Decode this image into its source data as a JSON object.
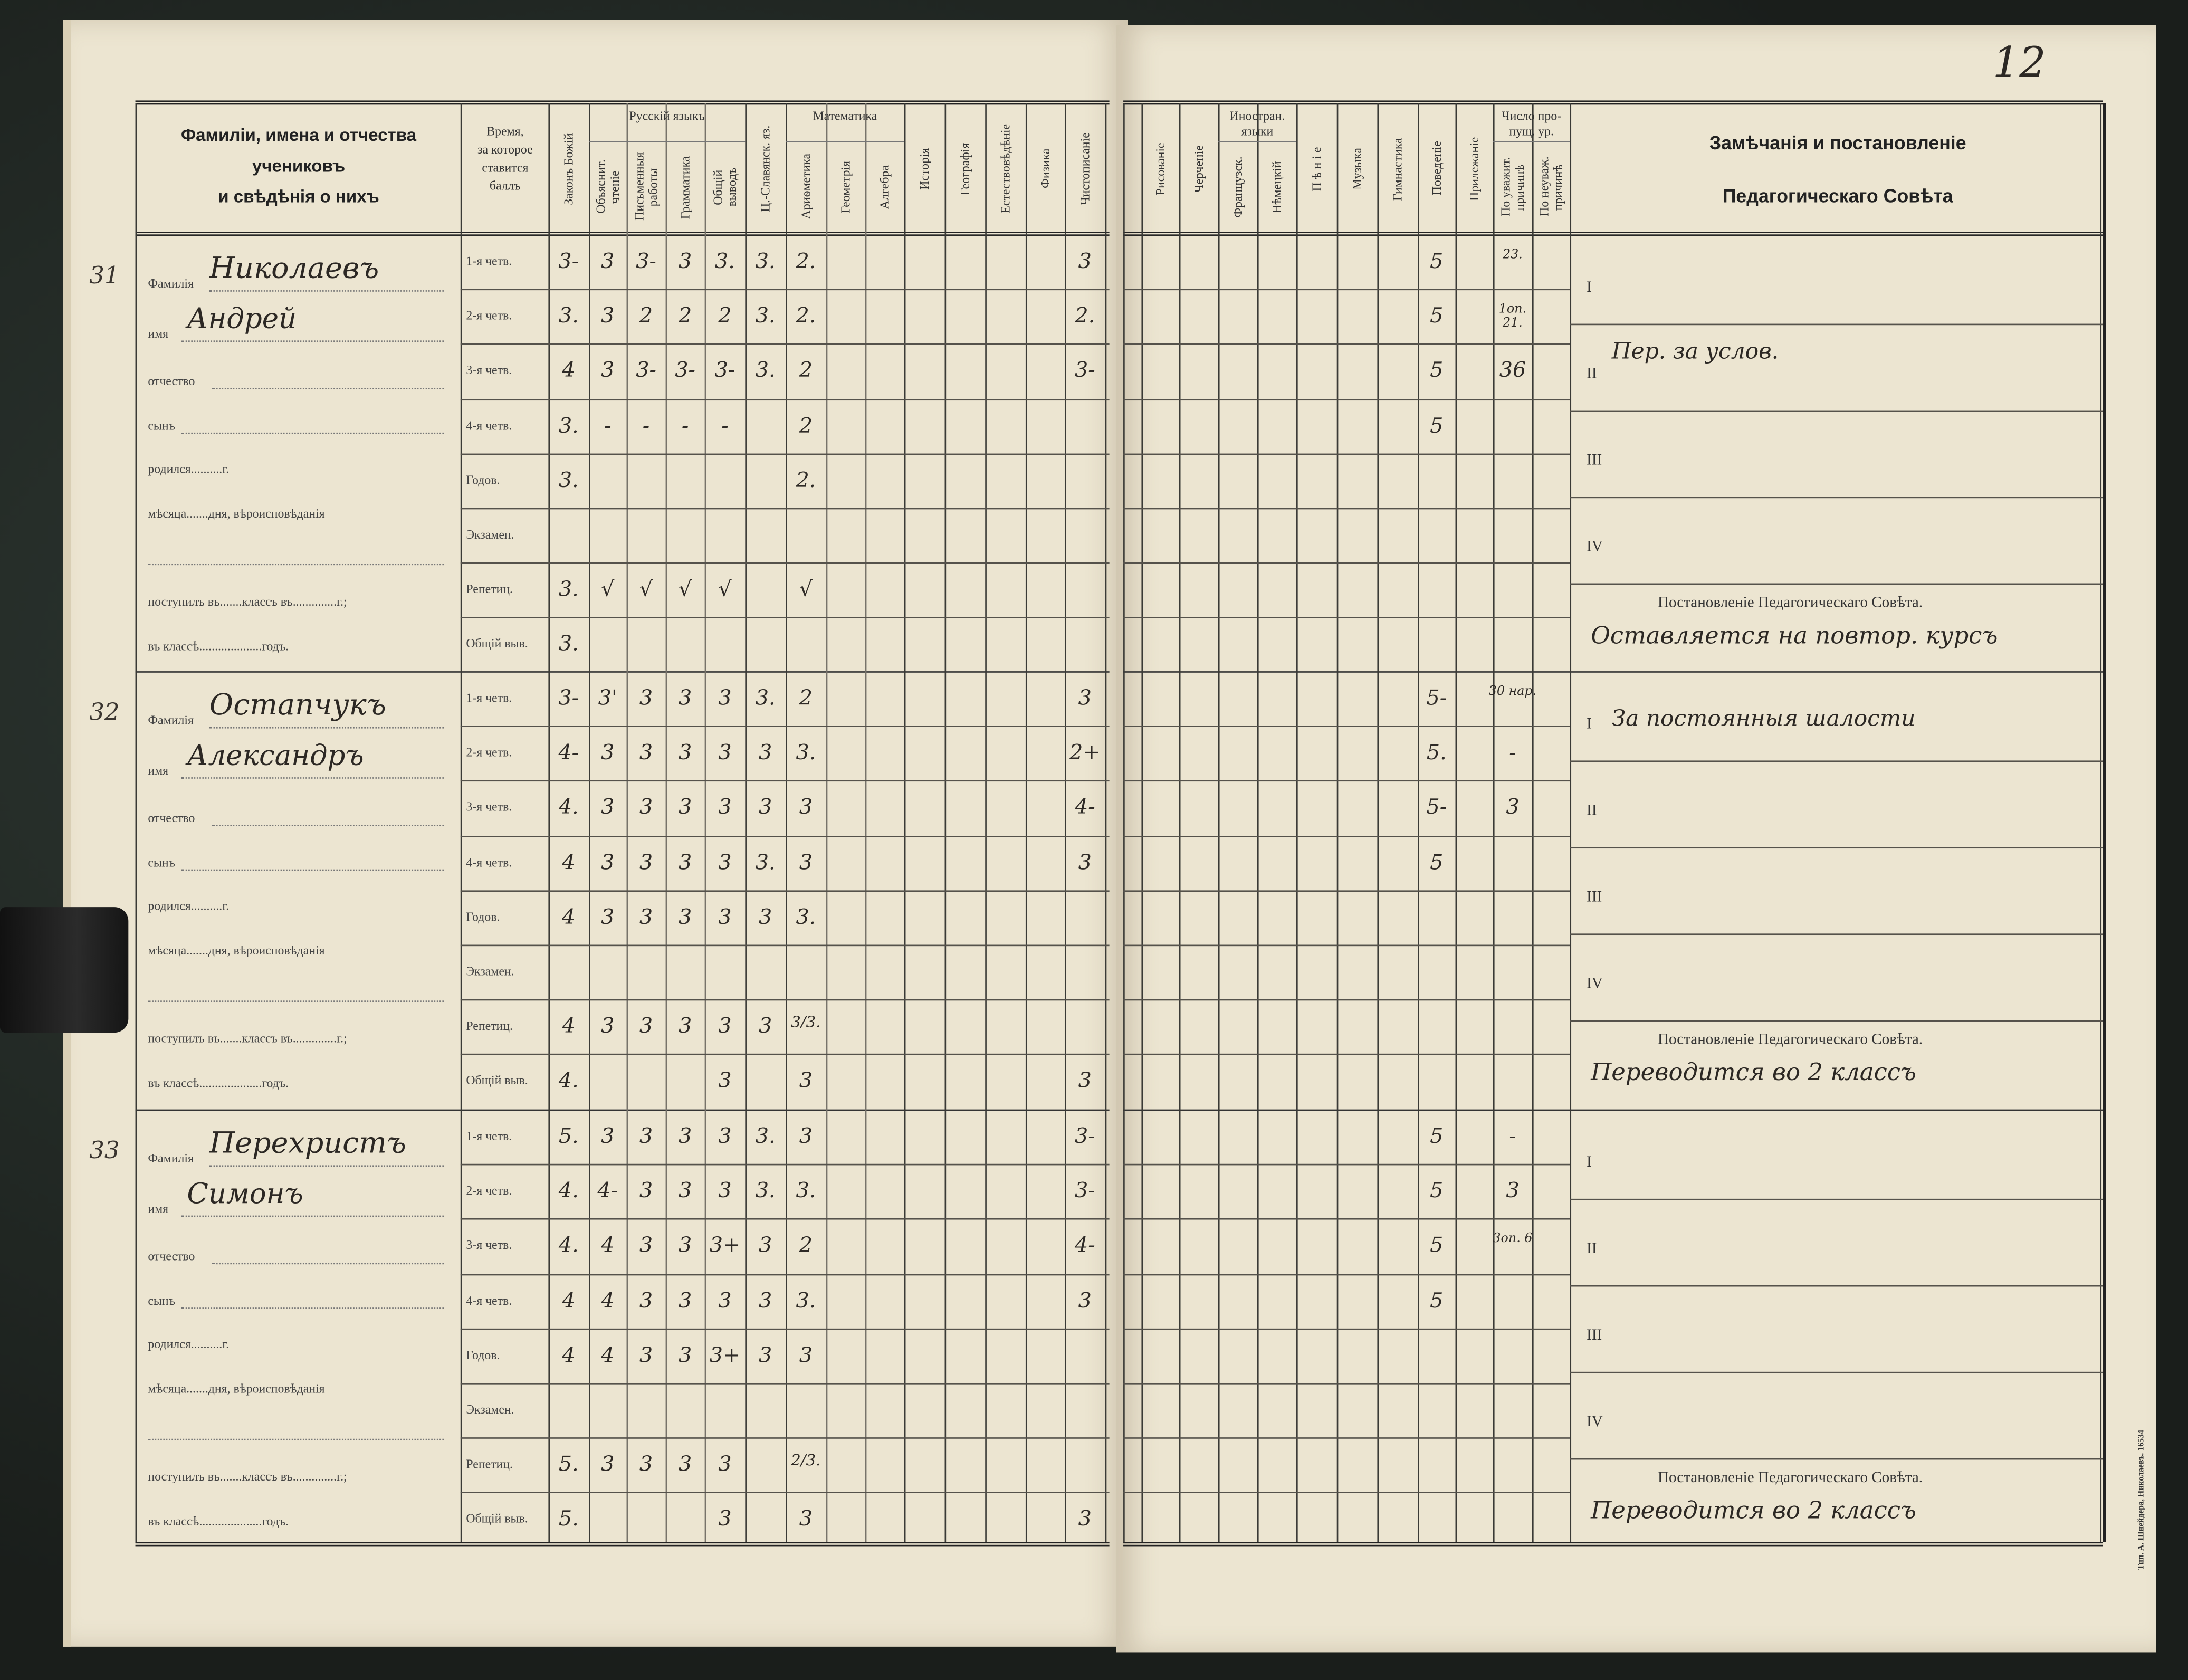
{
  "page_number": "12",
  "header": {
    "names_col": [
      "Фамиліи, имена и отчества",
      "учениковъ",
      "и свѣдѣнія о нихъ"
    ],
    "time_col": "Время,\nза которое\nставится\nбаллъ",
    "groups": {
      "russian": "Русскій языкъ",
      "math": "Математика",
      "foreign": "Иностран. языки",
      "absences": "Число про-\nпущ. ур."
    },
    "left_subjects": [
      "Законъ Божій",
      "Объяснит.\nчтеніе",
      "Письменныя\nработы",
      "Грамматика",
      "Общій\nвыводъ",
      "Ц.-Славянск. яз.",
      "Ариѳметика",
      "Геометрія",
      "Алгебра",
      "Исторія",
      "Географія",
      "Естествовѣдѣніе",
      "Физика",
      "Чистописаніе"
    ],
    "right_subjects": [
      "Рисованіе",
      "Черченіе",
      "Французск.",
      "Нѣмецкій",
      "П ѣ н і е",
      "Музыка",
      "Гимнастика",
      "Поведеніе",
      "Прилежаніе",
      "По уважит.\nпричинѣ",
      "По неуваж.\nпричинѣ"
    ],
    "remarks_title": [
      "Замѣчанія и постановленіе",
      "Педагогическаго Совѣта"
    ]
  },
  "form_labels": {
    "surname": "Фамилія",
    "name": "имя",
    "patronymic": "отчество",
    "son": "сынъ",
    "born": "родился..........г.",
    "month": "мѣсяца.......дня, вѣроисповѣданія",
    "entered": "поступилъ въ.......классъ въ..............г.;",
    "in_class": "въ классѣ....................годъ."
  },
  "period_labels": [
    "1-я четв.",
    "2-я четв.",
    "3-я четв.",
    "4-я четв.",
    "Годов.",
    "Экзамен.",
    "Репетиц.",
    "Общій выв."
  ],
  "quarter_numerals": [
    "I",
    "II",
    "III",
    "IV"
  ],
  "resolution_label": "Постановленіе Педагогическаго Совѣта.",
  "printer_imprint": "Тип. А. Шнейдера, Николаевъ. 16534",
  "students": [
    {
      "number": "31",
      "surname": "Николаевъ",
      "name": "Андрей",
      "left_grades": [
        [
          "3-",
          "3",
          "3-",
          "3",
          "3.",
          "3.",
          "2.",
          "",
          "",
          "",
          "",
          "",
          "",
          "3"
        ],
        [
          "3.",
          "3",
          "2",
          "2",
          "2",
          "3.",
          "2.",
          "",
          "",
          "",
          "",
          "",
          "",
          "2."
        ],
        [
          "4",
          "3",
          "3-",
          "3-",
          "3-",
          "3.",
          "2",
          "",
          "",
          "",
          "",
          "",
          "",
          "3-"
        ],
        [
          "3.",
          "-",
          "-",
          "-",
          "-",
          "",
          "2",
          "",
          "",
          "",
          "",
          "",
          "",
          ""
        ],
        [
          "3.",
          "",
          "",
          "",
          "",
          "",
          "2.",
          "",
          "",
          "",
          "",
          "",
          "",
          ""
        ],
        [
          "",
          "",
          "",
          "",
          "",
          "",
          "",
          "",
          "",
          "",
          "",
          "",
          "",
          ""
        ],
        [
          "3.",
          "√",
          "√",
          "√",
          "√",
          "",
          "√",
          "",
          "",
          "",
          "",
          "",
          "",
          ""
        ],
        [
          "3.",
          "",
          "",
          "",
          "",
          "",
          "",
          "",
          "",
          "",
          "",
          "",
          "",
          ""
        ]
      ],
      "right_grades": [
        [
          "",
          "",
          "",
          "",
          "",
          "",
          "",
          "5",
          "",
          "23.",
          ""
        ],
        [
          "",
          "",
          "",
          "",
          "",
          "",
          "",
          "5",
          "",
          "1оп. 21.",
          ""
        ],
        [
          "",
          "",
          "",
          "",
          "",
          "",
          "",
          "5",
          "",
          "36",
          ""
        ],
        [
          "",
          "",
          "",
          "",
          "",
          "",
          "",
          "5",
          "",
          "",
          ""
        ],
        [
          "",
          "",
          "",
          "",
          "",
          "",
          "",
          "",
          "",
          "",
          ""
        ],
        [
          "",
          "",
          "",
          "",
          "",
          "",
          "",
          "",
          "",
          "",
          ""
        ],
        [
          "",
          "",
          "",
          "",
          "",
          "",
          "",
          "",
          "",
          "",
          ""
        ],
        [
          "",
          "",
          "",
          "",
          "",
          "",
          "",
          "",
          "",
          "",
          ""
        ]
      ],
      "remarks": [
        "",
        "Пер. за услов.",
        "",
        ""
      ],
      "resolution": "Оставляется на повтор. курсъ"
    },
    {
      "number": "32",
      "surname": "Остапчукъ",
      "name": "Александръ",
      "left_grades": [
        [
          "3-",
          "3'",
          "3",
          "3",
          "3",
          "3.",
          "2",
          "",
          "",
          "",
          "",
          "",
          "",
          "3"
        ],
        [
          "4-",
          "3",
          "3",
          "3",
          "3",
          "3",
          "3.",
          "",
          "",
          "",
          "",
          "",
          "",
          "2+"
        ],
        [
          "4.",
          "3",
          "3",
          "3",
          "3",
          "3",
          "3",
          "",
          "",
          "",
          "",
          "",
          "",
          "4-"
        ],
        [
          "4",
          "3",
          "3",
          "3",
          "3",
          "3.",
          "3",
          "",
          "",
          "",
          "",
          "",
          "",
          "3"
        ],
        [
          "4",
          "3",
          "3",
          "3",
          "3",
          "3",
          "3.",
          "",
          "",
          "",
          "",
          "",
          "",
          ""
        ],
        [
          "",
          "",
          "",
          "",
          "",
          "",
          "",
          "",
          "",
          "",
          "",
          "",
          "",
          ""
        ],
        [
          "4",
          "3",
          "3",
          "3",
          "3",
          "3",
          "3/3.",
          "",
          "",
          "",
          "",
          "",
          "",
          ""
        ],
        [
          "4.",
          "",
          "",
          "",
          "3",
          "",
          "3",
          "",
          "",
          "",
          "",
          "",
          "",
          "3"
        ]
      ],
      "right_grades": [
        [
          "",
          "",
          "",
          "",
          "",
          "",
          "",
          "5-",
          "",
          "30 нар.",
          ""
        ],
        [
          "",
          "",
          "",
          "",
          "",
          "",
          "",
          "5.",
          "",
          "-",
          ""
        ],
        [
          "",
          "",
          "",
          "",
          "",
          "",
          "",
          "5-",
          "",
          "3",
          ""
        ],
        [
          "",
          "",
          "",
          "",
          "",
          "",
          "",
          "5",
          "",
          "",
          ""
        ],
        [
          "",
          "",
          "",
          "",
          "",
          "",
          "",
          "",
          "",
          "",
          ""
        ],
        [
          "",
          "",
          "",
          "",
          "",
          "",
          "",
          "",
          "",
          "",
          ""
        ],
        [
          "",
          "",
          "",
          "",
          "",
          "",
          "",
          "",
          "",
          "",
          ""
        ],
        [
          "",
          "",
          "",
          "",
          "",
          "",
          "",
          "",
          "",
          "",
          ""
        ]
      ],
      "remarks": [
        "За постоянныя шалости",
        "",
        "",
        ""
      ],
      "resolution": "Переводится во 2 классъ"
    },
    {
      "number": "33",
      "surname": "Перехристъ",
      "name": "Симонъ",
      "left_grades": [
        [
          "5.",
          "3",
          "3",
          "3",
          "3",
          "3.",
          "3",
          "",
          "",
          "",
          "",
          "",
          "",
          "3-"
        ],
        [
          "4.",
          "4-",
          "3",
          "3",
          "3",
          "3.",
          "3.",
          "",
          "",
          "",
          "",
          "",
          "",
          "3-"
        ],
        [
          "4.",
          "4",
          "3",
          "3",
          "3+",
          "3",
          "2",
          "",
          "",
          "",
          "",
          "",
          "",
          "4-"
        ],
        [
          "4",
          "4",
          "3",
          "3",
          "3",
          "3",
          "3.",
          "",
          "",
          "",
          "",
          "",
          "",
          "3"
        ],
        [
          "4",
          "4",
          "3",
          "3",
          "3+",
          "3",
          "3",
          "",
          "",
          "",
          "",
          "",
          "",
          ""
        ],
        [
          "",
          "",
          "",
          "",
          "",
          "",
          "",
          "",
          "",
          "",
          "",
          "",
          "",
          ""
        ],
        [
          "5.",
          "3",
          "3",
          "3",
          "3",
          "",
          "2/3.",
          "",
          "",
          "",
          "",
          "",
          "",
          ""
        ],
        [
          "5.",
          "",
          "",
          "",
          "3",
          "",
          "3",
          "",
          "",
          "",
          "",
          "",
          "",
          "3"
        ]
      ],
      "right_grades": [
        [
          "",
          "",
          "",
          "",
          "",
          "",
          "",
          "5",
          "",
          "-",
          ""
        ],
        [
          "",
          "",
          "",
          "",
          "",
          "",
          "",
          "5",
          "",
          "3",
          ""
        ],
        [
          "",
          "",
          "",
          "",
          "",
          "",
          "",
          "5",
          "",
          "3оп. 6",
          ""
        ],
        [
          "",
          "",
          "",
          "",
          "",
          "",
          "",
          "5",
          "",
          "",
          ""
        ],
        [
          "",
          "",
          "",
          "",
          "",
          "",
          "",
          "",
          "",
          "",
          ""
        ],
        [
          "",
          "",
          "",
          "",
          "",
          "",
          "",
          "",
          "",
          "",
          ""
        ],
        [
          "",
          "",
          "",
          "",
          "",
          "",
          "",
          "",
          "",
          "",
          ""
        ],
        [
          "",
          "",
          "",
          "",
          "",
          "",
          "",
          "",
          "",
          "",
          ""
        ]
      ],
      "remarks": [
        "",
        "",
        "",
        ""
      ],
      "resolution": "Переводится во 2 классъ"
    }
  ],
  "colors": {
    "paper": "#ece5d1",
    "ink": "#2c2824",
    "cover": "#1c1f1c"
  }
}
